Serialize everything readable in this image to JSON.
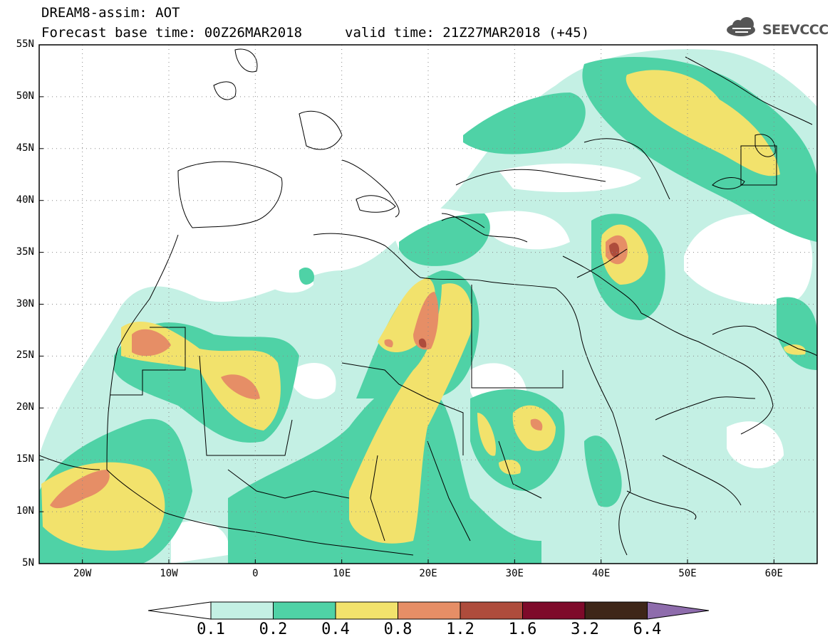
{
  "header": {
    "line1": "DREAM8-assim: AOT",
    "line2": "Forecast base time: 00Z26MAR2018",
    "line3": "valid time: 21Z27MAR2018 (+45)",
    "logo_text": "SEEVCCC"
  },
  "map": {
    "lon_range": [
      -25,
      65
    ],
    "lat_range": [
      5,
      55
    ],
    "lat_labels": [
      "55N",
      "50N",
      "45N",
      "40N",
      "35N",
      "30N",
      "25N",
      "20N",
      "15N",
      "10N",
      "5N"
    ],
    "lon_labels": [
      "20W",
      "10W",
      "0",
      "10E",
      "20E",
      "30E",
      "40E",
      "50E",
      "60E"
    ],
    "grid": "dotted"
  },
  "colorbar": {
    "labels": [
      "0.1",
      "0.2",
      "0.4",
      "0.8",
      "1.2",
      "1.6",
      "3.2",
      "6.4"
    ],
    "colors": [
      "#ffffff",
      "#c4f0e4",
      "#4fd2a6",
      "#f2e26c",
      "#e68e66",
      "#ae4c3c",
      "#7e0a2a",
      "#3e2618",
      "#8e6cac"
    ]
  }
}
